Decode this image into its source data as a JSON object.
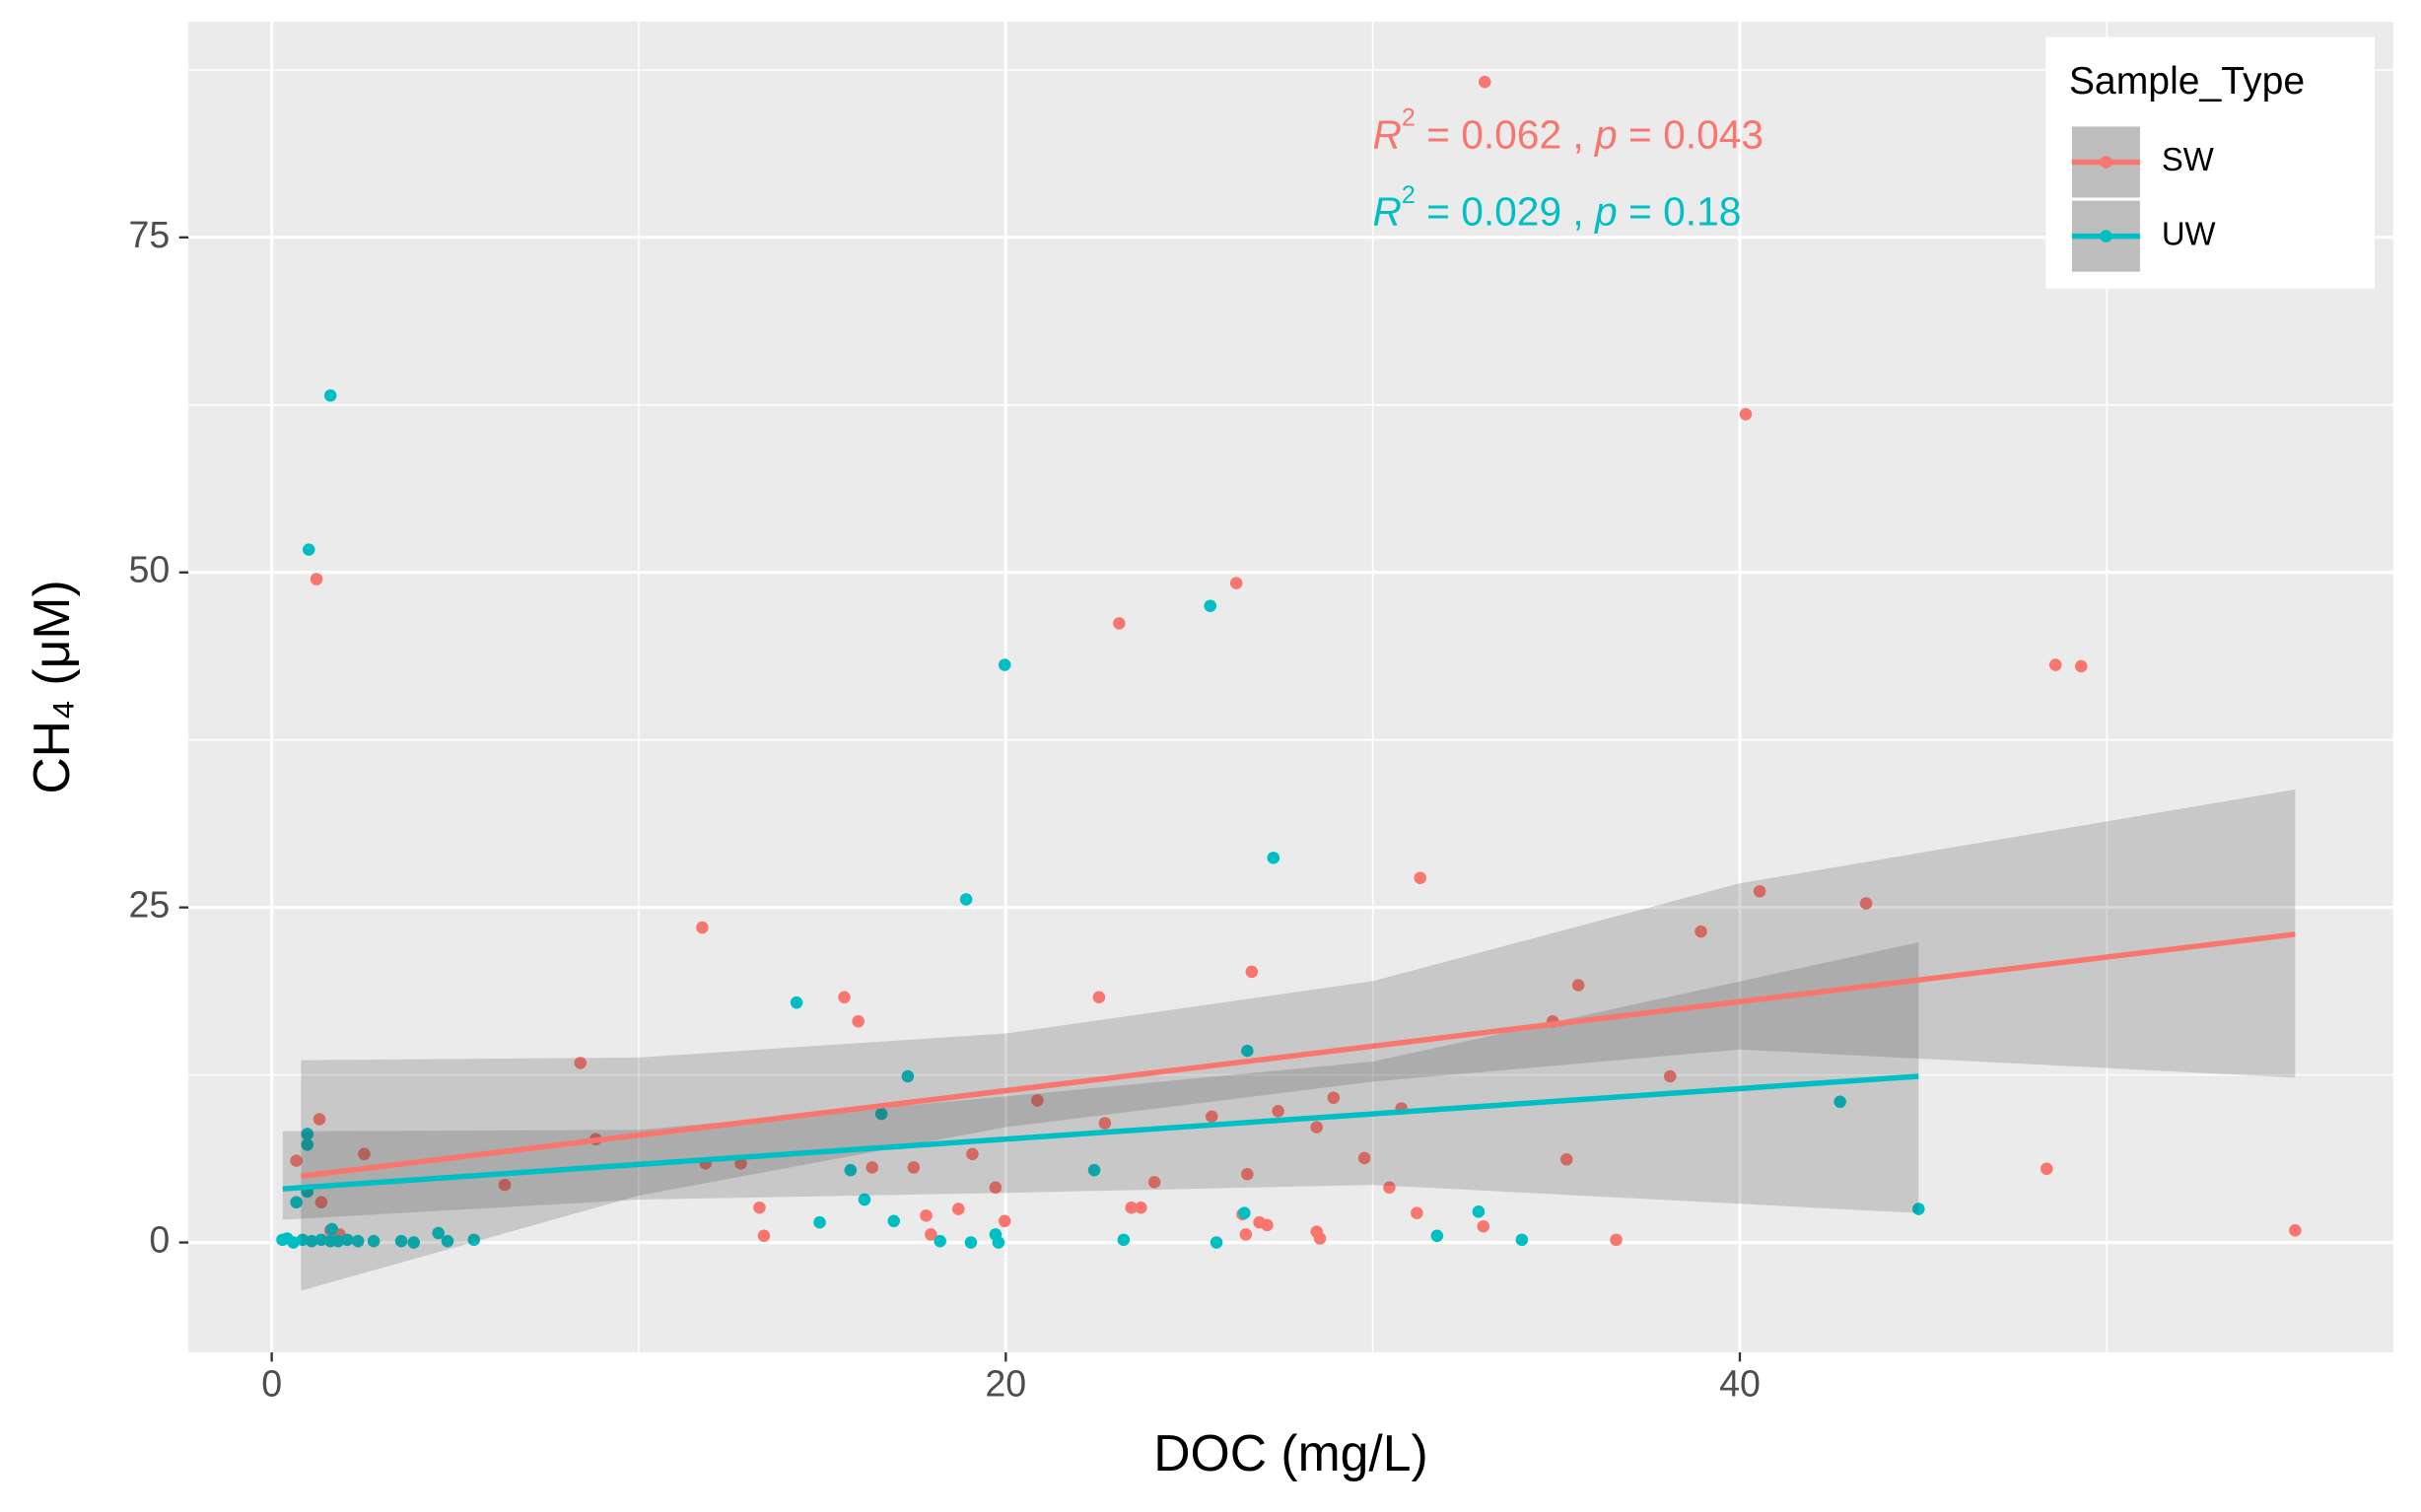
{
  "chart_data": {
    "type": "scatter",
    "x_label": "DOC (mg/L)",
    "y_label": "CH₄ (μM)",
    "xlim": [
      -2.27,
      57.8
    ],
    "ylim": [
      -8.2,
      91.1
    ],
    "xticks": [
      0,
      20,
      40
    ],
    "yticks": [
      0,
      25,
      50,
      75
    ],
    "x_minor_ticks": [
      10,
      30,
      50
    ],
    "y_minor_ticks": [
      12.5,
      37.5,
      62.5,
      87.5
    ],
    "grid": true,
    "legend": "top-right",
    "legend_title": "Sample_Type",
    "series": [
      {
        "name": "SW",
        "color": "#F8766D",
        "x": [
          33.05,
          40.16,
          1.22,
          26.28,
          23.09,
          48.6,
          49.3,
          11.73,
          31.29,
          40.54,
          43.44,
          38.94,
          26.7,
          15.6,
          22.54,
          15.98,
          35.6,
          34.9,
          8.41,
          38.1,
          1.3,
          28.93,
          20.86,
          30.78,
          27.42,
          25.61,
          22.7,
          28.47,
          8.83,
          2.52,
          19.09,
          0.67,
          11.82,
          12.78,
          17.49,
          16.36,
          29.77,
          35.28,
          48.36,
          26.58,
          6.35,
          24.05,
          19.72,
          30.45,
          1.35,
          13.29,
          23.42,
          23.68,
          18.71,
          31.2,
          26.45,
          17.83,
          19.97,
          26.91,
          27.12,
          33.01,
          55.13,
          17.96,
          26.54,
          28.47,
          28.56,
          13.41,
          36.63,
          1.6,
          1.85
        ],
        "values": [
          86.6,
          61.8,
          49.5,
          49.2,
          46.2,
          43.1,
          43.0,
          23.5,
          27.2,
          26.2,
          25.3,
          23.2,
          20.2,
          18.3,
          18.3,
          16.5,
          19.2,
          16.5,
          13.4,
          12.4,
          9.2,
          10.8,
          10.6,
          10.0,
          9.8,
          9.4,
          8.9,
          8.6,
          7.7,
          6.6,
          6.6,
          6.1,
          5.9,
          5.9,
          5.6,
          5.6,
          6.3,
          6.2,
          5.5,
          5.1,
          4.3,
          4.5,
          4.1,
          4.1,
          3.0,
          2.6,
          2.6,
          2.6,
          2.5,
          2.2,
          2.1,
          2.0,
          1.6,
          1.5,
          1.3,
          1.2,
          0.9,
          0.6,
          0.6,
          0.8,
          0.3,
          0.5,
          0.2,
          0.9,
          0.6
        ],
        "fit": {
          "x": [
            0.8,
            55.13
          ],
          "y": [
            4.95,
            23.0
          ]
        },
        "band": {
          "x": [
            0.8,
            10,
            20,
            30,
            40,
            55.13
          ],
          "lower": [
            -3.6,
            3.5,
            8.6,
            12.0,
            14.4,
            12.3
          ],
          "upper": [
            13.6,
            13.8,
            15.6,
            19.5,
            26.8,
            33.8
          ]
        },
        "stat_label": {
          "r": "R",
          "sup": "2",
          "r_value": " = 0.062 , ",
          "p": "p",
          "p_value": " = 0.043"
        }
      },
      {
        "name": "UW",
        "color": "#00BFC4",
        "x": [
          1.6,
          1.01,
          25.57,
          19.97,
          27.29,
          18.92,
          14.3,
          26.58,
          17.33,
          42.73,
          16.61,
          0.97,
          0.97,
          22.41,
          15.77,
          0.97,
          0.67,
          16.15,
          32.88,
          44.87,
          14.93,
          16.95,
          26.5,
          4.54,
          23.21,
          31.75,
          34.06,
          18.21,
          19.05,
          19.8,
          19.72,
          25.74,
          0.29,
          0.42,
          0.59,
          0.84,
          1.09,
          1.35,
          1.6,
          1.81,
          2.06,
          2.35,
          2.78,
          3.53,
          3.87,
          4.79,
          5.51,
          1.64
        ],
        "values": [
          63.2,
          51.7,
          47.5,
          43.1,
          28.7,
          25.6,
          17.9,
          14.3,
          12.4,
          10.5,
          9.6,
          8.1,
          7.3,
          5.4,
          5.4,
          3.8,
          3.0,
          3.2,
          2.3,
          2.5,
          1.5,
          1.6,
          2.2,
          0.7,
          0.2,
          0.5,
          0.2,
          0.1,
          0,
          0,
          0.6,
          0,
          0.2,
          0.3,
          0,
          0.2,
          0.1,
          0.2,
          0.1,
          0.1,
          0.2,
          0.1,
          0.1,
          0.1,
          0,
          0.1,
          0.2,
          1.0
        ],
        "fit": {
          "x": [
            0.3,
            44.87
          ],
          "y": [
            4.0,
            12.4
          ]
        },
        "band": {
          "x": [
            0.3,
            10,
            20,
            30,
            44.87
          ],
          "lower": [
            1.7,
            3.2,
            3.7,
            4.3,
            2.2
          ],
          "upper": [
            8.3,
            8.4,
            10.9,
            13.5,
            22.4
          ]
        },
        "stat_label": {
          "r": "R",
          "sup": "2",
          "r_value": " = 0.029 , ",
          "p": "p",
          "p_value": " = 0.18"
        }
      }
    ]
  }
}
